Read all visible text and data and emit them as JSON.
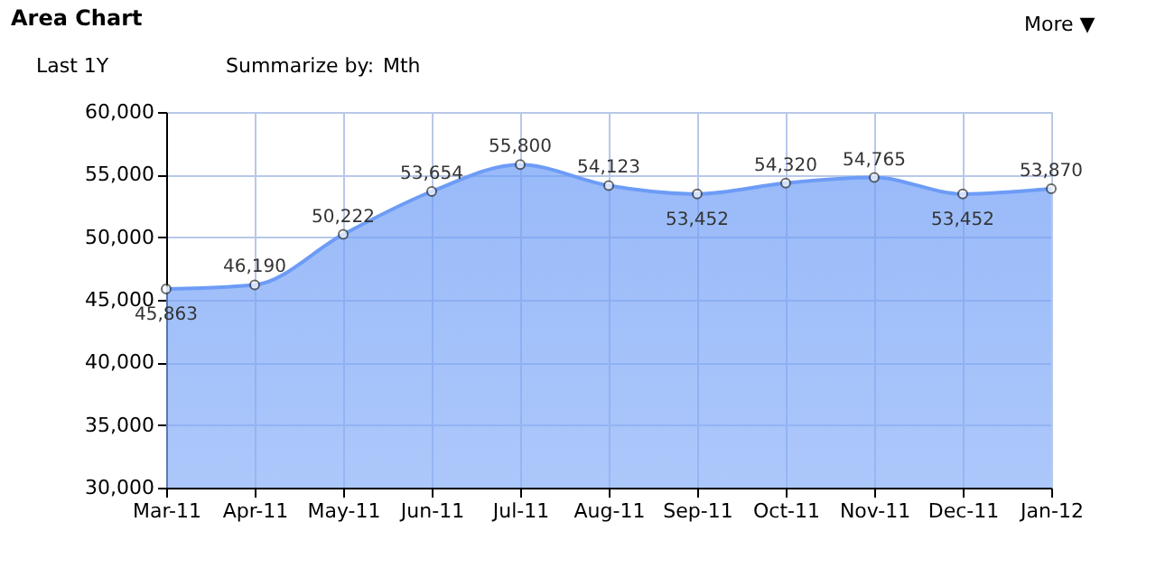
{
  "chart_data": {
    "type": "area",
    "title": "Area Chart",
    "annotations": [
      "More ▼",
      "Last 1Y",
      "Summarize by:",
      "Mth"
    ],
    "categories": [
      "Mar-11",
      "Apr-11",
      "May-11",
      "Jun-11",
      "Jul-11",
      "Aug-11",
      "Sep-11",
      "Oct-11",
      "Nov-11",
      "Dec-11",
      "Jan-12"
    ],
    "series": [
      {
        "color": "#6d9cf6",
        "values": [
          45863,
          46190,
          50222,
          53654,
          55800,
          54123,
          53452,
          54320,
          54765,
          53452,
          53870
        ],
        "value_labels": [
          "45,863",
          "46,190",
          "50,222",
          "53,654",
          "55,800",
          "54,123",
          "53,452",
          "54,320",
          "54,765",
          "53,452",
          "53,870"
        ]
      }
    ],
    "ylim": [
      30000,
      60000
    ],
    "yticks": [
      {
        "value": 30000,
        "label": "30,000"
      },
      {
        "value": 35000,
        "label": "35,000"
      },
      {
        "value": 40000,
        "label": "40,000"
      },
      {
        "value": 45000,
        "label": "45,000"
      },
      {
        "value": 50000,
        "label": "50,000"
      },
      {
        "value": 55000,
        "label": "55,000"
      },
      {
        "value": 60000,
        "label": "60,000"
      }
    ],
    "grid": true,
    "marker": "circle"
  }
}
